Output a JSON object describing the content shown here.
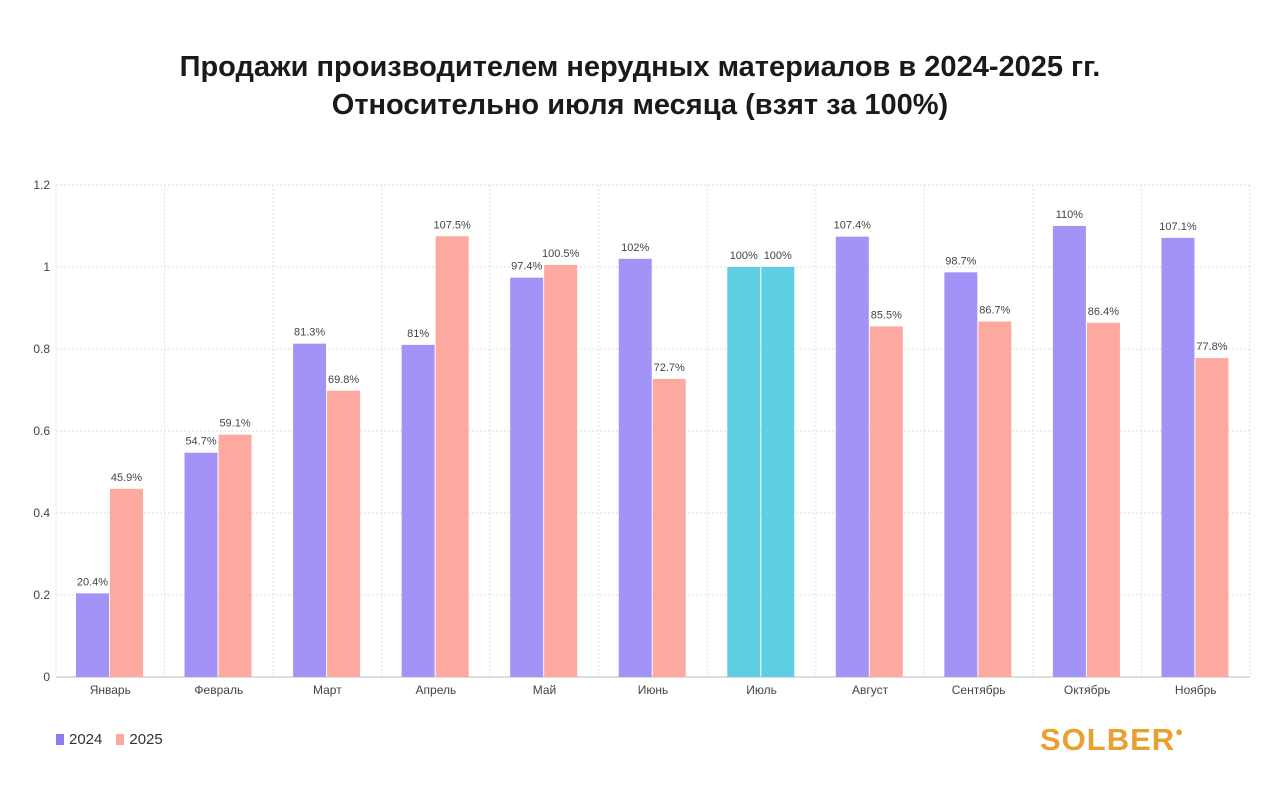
{
  "chart_data": {
    "type": "bar",
    "title": [
      "Продажи производителем нерудных материалов в 2024-2025 гг.",
      "Относительно июля месяца (взят за 100%)"
    ],
    "categories": [
      "Январь",
      "Февраль",
      "Март",
      "Апрель",
      "Май",
      "Июнь",
      "Июль",
      "Август",
      "Сентябрь",
      "Октябрь",
      "Ноябрь"
    ],
    "series": [
      {
        "name": "2024",
        "color": "#a393f7",
        "values": [
          0.204,
          0.547,
          0.813,
          0.81,
          0.974,
          1.02,
          1.0,
          1.074,
          0.987,
          1.1,
          1.071
        ],
        "labels": [
          "20.4%",
          "54.7%",
          "81.3%",
          "81%",
          "97.4%",
          "102%",
          "100%",
          "107.4%",
          "98.7%",
          "110%",
          "107.1%"
        ]
      },
      {
        "name": "2025",
        "color": "#fda9a0",
        "values": [
          0.459,
          0.591,
          0.698,
          1.075,
          1.005,
          0.727,
          1.0,
          0.855,
          0.867,
          0.864,
          0.778
        ],
        "labels": [
          "45.9%",
          "59.1%",
          "69.8%",
          "107.5%",
          "100.5%",
          "72.7%",
          "100%",
          "85.5%",
          "86.7%",
          "86.4%",
          "77.8%"
        ]
      }
    ],
    "highlight": {
      "category": "Июль",
      "color": "#5ecfe3"
    },
    "ylim": [
      0,
      1.2
    ],
    "yticks": [
      "0",
      "0.2",
      "0.4",
      "0.6",
      "0.8",
      "1",
      "1.2"
    ],
    "grid": true,
    "legend_position": "bottom-left"
  },
  "logo": {
    "text": "SOLBER"
  }
}
